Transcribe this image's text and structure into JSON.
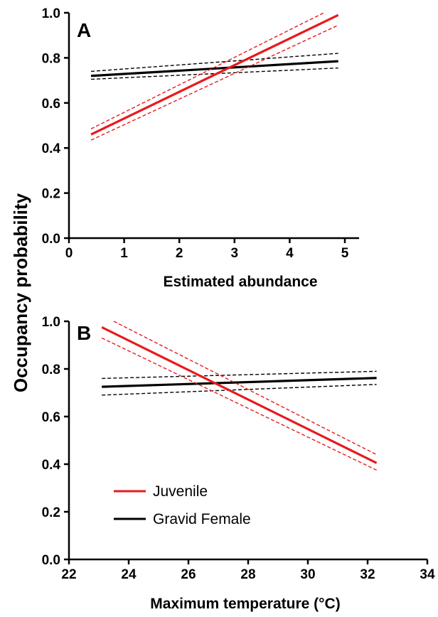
{
  "ylabel": "Occupancy probability",
  "colors": {
    "juvenile": "#e8191c",
    "gravid": "#000000"
  },
  "legend": {
    "placement": "bottom-left of panel B",
    "items": [
      {
        "label": "Juvenile",
        "color": "#e8191c"
      },
      {
        "label": "Gravid Female",
        "color": "#000000"
      }
    ]
  },
  "chart_data": [
    {
      "type": "line",
      "panel": "A",
      "title": "",
      "xlabel": "Estimated abundance",
      "ylabel": "Occupancy probability",
      "xlim": [
        0,
        5
      ],
      "ylim": [
        0,
        1.0
      ],
      "xticks": [
        0,
        1,
        2,
        3,
        4,
        5
      ],
      "xtick_labels": [
        "0",
        "1",
        "2",
        "3",
        "4",
        "5"
      ],
      "yticks": [
        0,
        0.2,
        0.4,
        0.6,
        0.8,
        1.0
      ],
      "ytick_labels": [
        "0.0",
        "0.2",
        "0.4",
        "0.6",
        "0.8",
        "1.0"
      ],
      "grid": false,
      "series": [
        {
          "name": "Juvenile",
          "color": "#e8191c",
          "x": [
            0.4,
            4.88
          ],
          "y": [
            0.46,
            0.99
          ],
          "ci_lower": {
            "x": [
              0.4,
              4.88
            ],
            "y": [
              0.435,
              0.945
            ]
          },
          "ci_upper": {
            "x": [
              0.4,
              4.62
            ],
            "y": [
              0.485,
              1.0
            ]
          }
        },
        {
          "name": "Gravid Female",
          "color": "#000000",
          "x": [
            0.4,
            4.88
          ],
          "y": [
            0.72,
            0.785
          ],
          "ci_lower": {
            "x": [
              0.4,
              4.88
            ],
            "y": [
              0.705,
              0.755
            ]
          },
          "ci_upper": {
            "x": [
              0.4,
              4.88
            ],
            "y": [
              0.74,
              0.82
            ]
          }
        }
      ]
    },
    {
      "type": "line",
      "panel": "B",
      "title": "",
      "xlabel": "Maximum temperature (°C)",
      "ylabel": "Occupancy probability",
      "xlim": [
        22,
        34
      ],
      "ylim": [
        0,
        1.0
      ],
      "xticks": [
        22,
        24,
        26,
        28,
        30,
        32,
        34
      ],
      "xtick_labels": [
        "22",
        "24",
        "26",
        "28",
        "30",
        "32",
        "34"
      ],
      "yticks": [
        0,
        0.2,
        0.4,
        0.6,
        0.8,
        1.0
      ],
      "ytick_labels": [
        "0.0",
        "0.2",
        "0.4",
        "0.6",
        "0.8",
        "1.0"
      ],
      "grid": false,
      "series": [
        {
          "name": "Juvenile",
          "color": "#e8191c",
          "x": [
            23.1,
            32.3
          ],
          "y": [
            0.975,
            0.405
          ],
          "ci_lower": {
            "x": [
              23.1,
              32.3
            ],
            "y": [
              0.93,
              0.375
            ]
          },
          "ci_upper": {
            "x": [
              23.5,
              32.3
            ],
            "y": [
              1.0,
              0.44
            ]
          }
        },
        {
          "name": "Gravid Female",
          "color": "#000000",
          "x": [
            23.1,
            32.3
          ],
          "y": [
            0.725,
            0.762
          ],
          "ci_lower": {
            "x": [
              23.1,
              32.3
            ],
            "y": [
              0.69,
              0.735
            ]
          },
          "ci_upper": {
            "x": [
              23.1,
              32.3
            ],
            "y": [
              0.76,
              0.79
            ]
          }
        }
      ]
    }
  ]
}
